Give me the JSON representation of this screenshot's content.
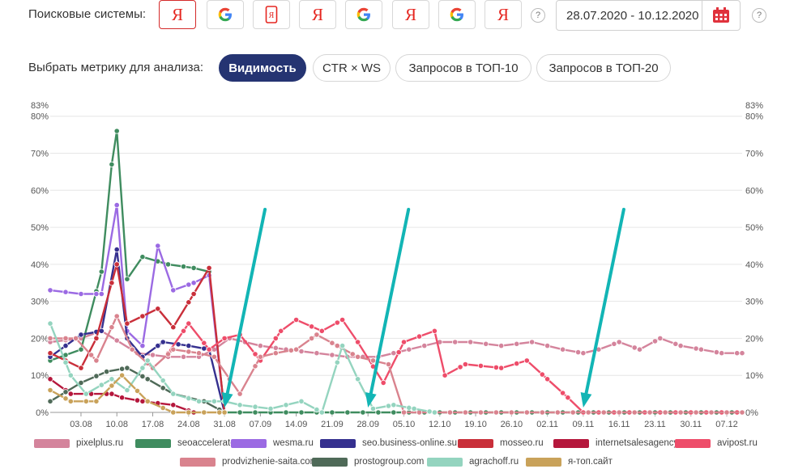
{
  "controls": {
    "search_label": "Поисковые системы:",
    "engines": [
      {
        "icon": "yandex-icon",
        "active": true
      },
      {
        "icon": "google-icon",
        "active": false
      },
      {
        "icon": "yandex-mobile-icon",
        "active": false
      },
      {
        "icon": "yandex-icon",
        "active": false
      },
      {
        "icon": "google-icon",
        "active": false
      },
      {
        "icon": "yandex-icon",
        "active": false
      },
      {
        "icon": "google-icon",
        "active": false
      },
      {
        "icon": "yandex-icon",
        "active": false
      }
    ],
    "help": "?",
    "yandex_glyph": "Я",
    "date_range": "28.07.2020 - 10.12.2020",
    "metric_label": "Выбрать метрику для анализа:",
    "metrics": [
      {
        "label": "Видимость",
        "active": true
      },
      {
        "label": "CTR × WS",
        "active": false
      },
      {
        "label": "Запросов в ТОП-10",
        "active": false
      },
      {
        "label": "Запросов в ТОП-20",
        "active": false
      }
    ]
  },
  "chart_data": {
    "type": "line",
    "ylim": [
      0,
      83
    ],
    "y_ticks": [
      "0%",
      "10%",
      "20%",
      "30%",
      "40%",
      "50%",
      "60%",
      "70%",
      "80%",
      "83%"
    ],
    "x_ticks": [
      "03.08",
      "10.08",
      "17.08",
      "24.08",
      "31.08",
      "07.09",
      "14.09",
      "21.09",
      "28.09",
      "05.10",
      "12.10",
      "19.10",
      "26.10",
      "02.11",
      "09.11",
      "16.11",
      "23.11",
      "30.11",
      "07.12"
    ],
    "x_start": "28.07.2020",
    "x_end": "10.12.2020",
    "legend_position": "bottom",
    "series": [
      {
        "name": "pixelplus.ru",
        "color": "#d4849c",
        "points": [
          [
            "2020-07-28",
            19
          ],
          [
            "2020-08-03",
            20
          ],
          [
            "2020-08-07",
            22
          ],
          [
            "2020-08-14",
            16
          ],
          [
            "2020-08-20",
            15
          ],
          [
            "2020-08-26",
            15
          ],
          [
            "2020-08-29",
            17
          ],
          [
            "2020-09-01",
            20
          ],
          [
            "2020-09-07",
            18
          ],
          [
            "2020-09-12",
            17
          ],
          [
            "2020-09-18",
            16
          ],
          [
            "2020-09-24",
            15
          ],
          [
            "2020-09-30",
            15
          ],
          [
            "2020-10-06",
            17
          ],
          [
            "2020-10-12",
            19
          ],
          [
            "2020-10-18",
            19
          ],
          [
            "2020-10-24",
            18
          ],
          [
            "2020-10-30",
            19
          ],
          [
            "2020-11-05",
            17
          ],
          [
            "2020-11-09",
            16
          ],
          [
            "2020-11-12",
            17
          ],
          [
            "2020-11-16",
            19
          ],
          [
            "2020-11-20",
            17
          ],
          [
            "2020-11-24",
            20
          ],
          [
            "2020-11-28",
            18
          ],
          [
            "2020-12-02",
            17
          ],
          [
            "2020-12-06",
            16
          ],
          [
            "2020-12-10",
            16
          ]
        ]
      },
      {
        "name": "seoaccelerator.ru",
        "color": "#3f8c5f",
        "points": [
          [
            "2020-07-28",
            14
          ],
          [
            "2020-08-03",
            17
          ],
          [
            "2020-08-07",
            38
          ],
          [
            "2020-08-09",
            67
          ],
          [
            "2020-08-10",
            76
          ],
          [
            "2020-08-12",
            36
          ],
          [
            "2020-08-15",
            42
          ],
          [
            "2020-08-20",
            40
          ],
          [
            "2020-08-25",
            39
          ],
          [
            "2020-08-28",
            38
          ],
          [
            "2020-08-31",
            0
          ],
          [
            "2020-12-10",
            0
          ]
        ]
      },
      {
        "name": "wesma.ru",
        "color": "#9b6ae3",
        "points": [
          [
            "2020-07-28",
            33
          ],
          [
            "2020-08-03",
            32
          ],
          [
            "2020-08-07",
            32
          ],
          [
            "2020-08-10",
            56
          ],
          [
            "2020-08-12",
            22
          ],
          [
            "2020-08-15",
            18
          ],
          [
            "2020-08-18",
            45
          ],
          [
            "2020-08-21",
            33
          ],
          [
            "2020-08-25",
            35
          ],
          [
            "2020-08-28",
            37
          ],
          [
            "2020-08-31",
            0
          ]
        ]
      },
      {
        "name": "seo.business-online.su",
        "color": "#35308f",
        "points": [
          [
            "2020-07-28",
            15
          ],
          [
            "2020-08-03",
            21
          ],
          [
            "2020-08-07",
            22
          ],
          [
            "2020-08-10",
            44
          ],
          [
            "2020-08-12",
            20
          ],
          [
            "2020-08-15",
            15
          ],
          [
            "2020-08-19",
            19
          ],
          [
            "2020-08-24",
            18
          ],
          [
            "2020-08-28",
            17
          ],
          [
            "2020-08-31",
            0
          ]
        ]
      },
      {
        "name": "mosseo.ru",
        "color": "#c92f3a",
        "points": [
          [
            "2020-07-28",
            16
          ],
          [
            "2020-08-03",
            12
          ],
          [
            "2020-08-06",
            20
          ],
          [
            "2020-08-10",
            40
          ],
          [
            "2020-08-12",
            24
          ],
          [
            "2020-08-15",
            26
          ],
          [
            "2020-08-18",
            28
          ],
          [
            "2020-08-21",
            23
          ],
          [
            "2020-08-25",
            32
          ],
          [
            "2020-08-28",
            39
          ],
          [
            "2020-08-31",
            0
          ]
        ]
      },
      {
        "name": "internetsalesagency.ru",
        "color": "#b5173c",
        "points": [
          [
            "2020-07-28",
            9
          ],
          [
            "2020-08-01",
            5
          ],
          [
            "2020-08-05",
            5
          ],
          [
            "2020-08-09",
            5
          ],
          [
            "2020-08-11",
            4
          ],
          [
            "2020-08-15",
            3
          ],
          [
            "2020-08-21",
            2
          ],
          [
            "2020-08-25",
            0
          ]
        ]
      },
      {
        "name": "avipost.ru",
        "color": "#ee4d6a",
        "points": [
          [
            "2020-08-20",
            16
          ],
          [
            "2020-08-24",
            24
          ],
          [
            "2020-08-28",
            17
          ],
          [
            "2020-08-31",
            20
          ],
          [
            "2020-09-03",
            21
          ],
          [
            "2020-09-07",
            14
          ],
          [
            "2020-09-11",
            22
          ],
          [
            "2020-09-14",
            25
          ],
          [
            "2020-09-19",
            22
          ],
          [
            "2020-09-23",
            25
          ],
          [
            "2020-09-26",
            19
          ],
          [
            "2020-10-01",
            8
          ],
          [
            "2020-10-05",
            19
          ],
          [
            "2020-10-11",
            22
          ],
          [
            "2020-10-13",
            10
          ],
          [
            "2020-10-17",
            13
          ],
          [
            "2020-10-24",
            12
          ],
          [
            "2020-10-29",
            14
          ],
          [
            "2020-11-02",
            9
          ],
          [
            "2020-11-06",
            4
          ],
          [
            "2020-11-09",
            0
          ],
          [
            "2020-12-10",
            0
          ]
        ]
      },
      {
        "name": "prodvizhenie-saita.com",
        "color": "#d9838e",
        "points": [
          [
            "2020-07-28",
            20
          ],
          [
            "2020-08-02",
            20
          ],
          [
            "2020-08-06",
            14
          ],
          [
            "2020-08-10",
            26
          ],
          [
            "2020-08-13",
            17
          ],
          [
            "2020-08-17",
            12
          ],
          [
            "2020-08-21",
            17
          ],
          [
            "2020-08-26",
            16
          ],
          [
            "2020-08-29",
            15
          ],
          [
            "2020-09-03",
            5
          ],
          [
            "2020-09-07",
            15
          ],
          [
            "2020-09-10",
            16
          ],
          [
            "2020-09-14",
            17
          ],
          [
            "2020-09-18",
            21
          ],
          [
            "2020-09-22",
            18
          ],
          [
            "2020-09-26",
            15
          ],
          [
            "2020-10-02",
            13
          ],
          [
            "2020-10-05",
            0
          ],
          [
            "2020-12-10",
            0
          ]
        ]
      },
      {
        "name": "prostogroup.com",
        "color": "#4f6a58",
        "points": [
          [
            "2020-07-28",
            3
          ],
          [
            "2020-08-03",
            8
          ],
          [
            "2020-08-08",
            11
          ],
          [
            "2020-08-12",
            12
          ],
          [
            "2020-08-16",
            9
          ],
          [
            "2020-08-21",
            5
          ],
          [
            "2020-08-27",
            3
          ],
          [
            "2020-08-31",
            0
          ]
        ]
      },
      {
        "name": "agrachoff.ru",
        "color": "#94d4bf",
        "points": [
          [
            "2020-07-28",
            24
          ],
          [
            "2020-08-01",
            10
          ],
          [
            "2020-08-04",
            5
          ],
          [
            "2020-08-09",
            9
          ],
          [
            "2020-08-12",
            6
          ],
          [
            "2020-08-16",
            14
          ],
          [
            "2020-08-21",
            5
          ],
          [
            "2020-08-26",
            3
          ],
          [
            "2020-08-31",
            3
          ],
          [
            "2020-09-03",
            2
          ],
          [
            "2020-09-09",
            1
          ],
          [
            "2020-09-15",
            3
          ],
          [
            "2020-09-19",
            0
          ],
          [
            "2020-09-23",
            18
          ],
          [
            "2020-09-26",
            9
          ],
          [
            "2020-09-29",
            1
          ],
          [
            "2020-10-03",
            2
          ],
          [
            "2020-10-07",
            1
          ],
          [
            "2020-10-11",
            0
          ]
        ]
      },
      {
        "name": "я-топ.сайт",
        "color": "#c9a25a",
        "points": [
          [
            "2020-07-28",
            6
          ],
          [
            "2020-08-01",
            3
          ],
          [
            "2020-08-06",
            3
          ],
          [
            "2020-08-11",
            10
          ],
          [
            "2020-08-16",
            3
          ],
          [
            "2020-08-21",
            0
          ],
          [
            "2020-08-31",
            0
          ]
        ]
      }
    ],
    "annotations": [
      {
        "type": "arrow",
        "color": "#12b5b5",
        "target": [
          "2020-08-31",
          0
        ]
      },
      {
        "type": "arrow",
        "color": "#12b5b5",
        "target": [
          "2020-09-28",
          0
        ]
      },
      {
        "type": "arrow",
        "color": "#12b5b5",
        "target": [
          "2020-11-09",
          0
        ]
      }
    ]
  }
}
